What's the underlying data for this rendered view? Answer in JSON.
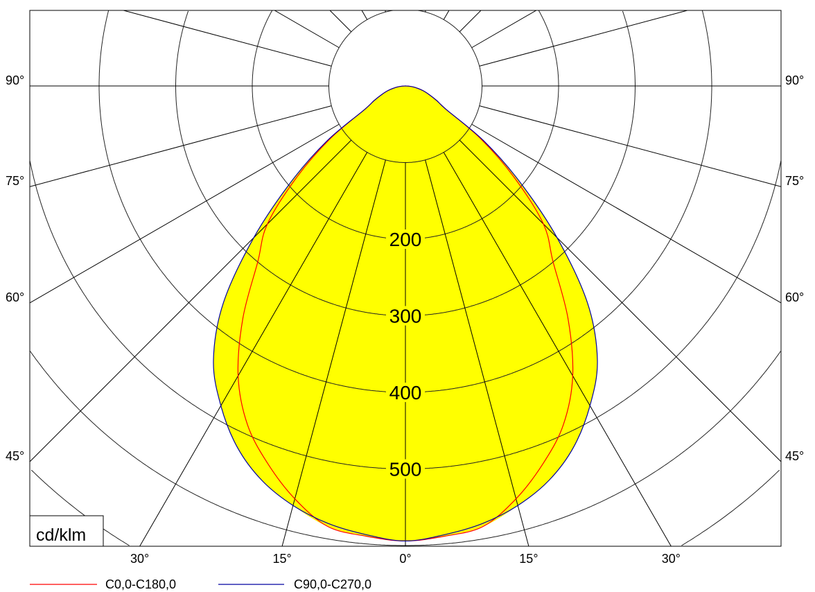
{
  "chart_data": {
    "type": "polar",
    "unit_label": "cd/klm",
    "radial_ticks": [
      200,
      300,
      400,
      500
    ],
    "radial_grid_step": 100,
    "angle_grid_step": 15,
    "side_angle_labels": [
      "90°",
      "75°",
      "60°",
      "45°"
    ],
    "side_angle_values": [
      90,
      75,
      60,
      45
    ],
    "bottom_angle_labels": [
      "30°",
      "15°",
      "0°",
      "15°",
      "30°"
    ],
    "bottom_angle_values": [
      -30,
      -15,
      0,
      15,
      30
    ],
    "grid": true,
    "legend_placement": "bottom-left",
    "fill_color": "#FFFF00",
    "angles": [
      0,
      5,
      10,
      15,
      20,
      25,
      30,
      35,
      40,
      45,
      50,
      55,
      60,
      65,
      70,
      75,
      80,
      85,
      90
    ],
    "series": [
      {
        "name": "C0,0-C180,0",
        "color": "#FF0000",
        "values": [
          594,
          590,
          584,
          558,
          525,
          488,
          437,
          370,
          300,
          255,
          185,
          120,
          62,
          45,
          33,
          24,
          15,
          7,
          0
        ]
      },
      {
        "name": "C90,0-C270,0",
        "color": "#0000A0",
        "values": [
          594,
          588,
          580,
          567,
          548,
          520,
          482,
          437,
          370,
          280,
          195,
          125,
          62,
          45,
          33,
          24,
          15,
          7,
          0
        ]
      }
    ]
  }
}
